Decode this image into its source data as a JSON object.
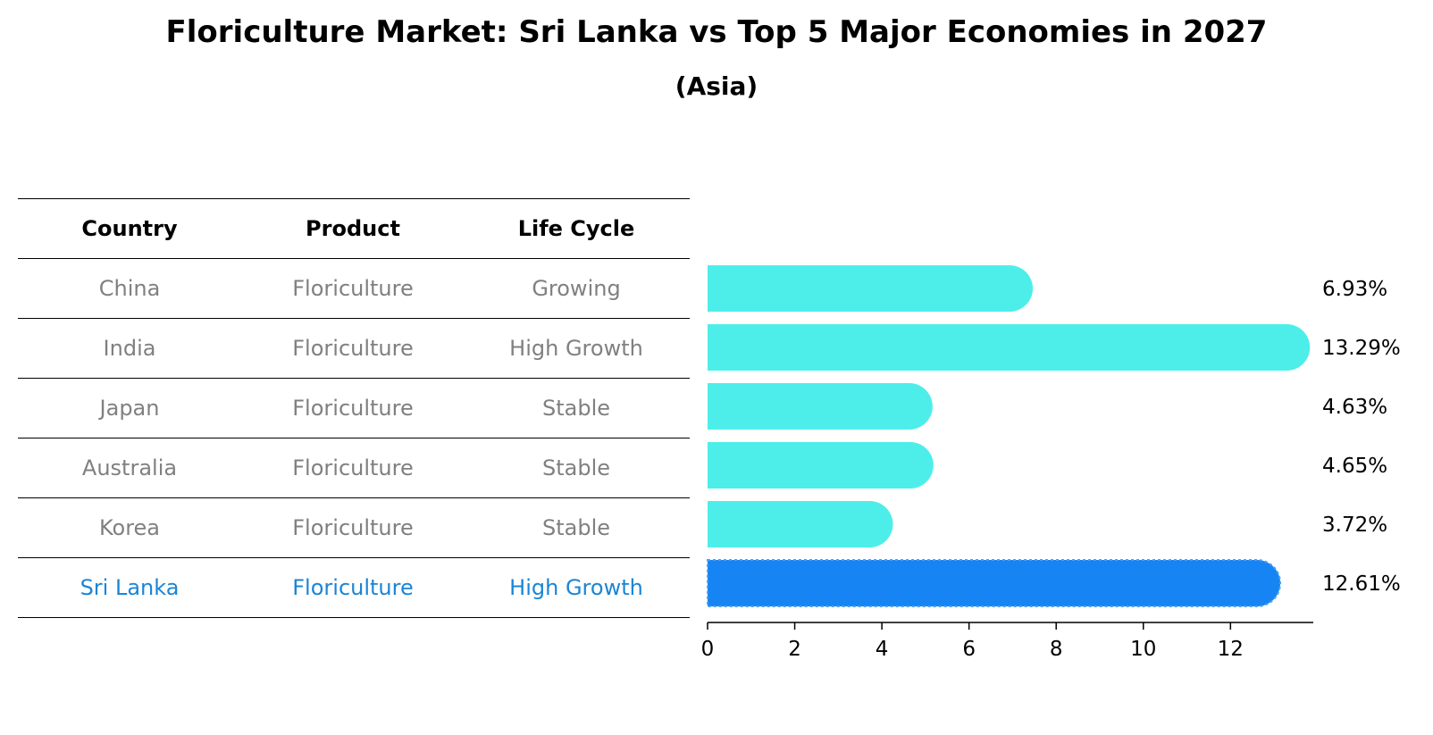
{
  "title": "Floriculture Market: Sri Lanka vs Top 5 Major Economies in 2027",
  "subtitle": "(Asia)",
  "table": {
    "headers": [
      "Country",
      "Product",
      "Life Cycle"
    ],
    "rows": [
      {
        "country": "China",
        "product": "Floriculture",
        "life_cycle": "Growing"
      },
      {
        "country": "India",
        "product": "Floriculture",
        "life_cycle": "High Growth"
      },
      {
        "country": "Japan",
        "product": "Floriculture",
        "life_cycle": "Stable"
      },
      {
        "country": "Australia",
        "product": "Floriculture",
        "life_cycle": "Stable"
      },
      {
        "country": "Korea",
        "product": "Floriculture",
        "life_cycle": "Stable"
      },
      {
        "country": "Sri Lanka",
        "product": "Floriculture",
        "life_cycle": "High Growth"
      }
    ]
  },
  "chart_data": {
    "type": "bar",
    "orientation": "horizontal",
    "categories": [
      "China",
      "India",
      "Japan",
      "Australia",
      "Korea",
      "Sri Lanka"
    ],
    "values": [
      6.93,
      13.29,
      4.63,
      4.65,
      3.72,
      12.61
    ],
    "value_labels": [
      "6.93%",
      "13.29%",
      "4.63%",
      "4.65%",
      "3.72%",
      "12.61%"
    ],
    "xlim": [
      0,
      13.9
    ],
    "xticks": [
      0,
      2,
      4,
      6,
      8,
      10,
      12
    ],
    "highlight_index": 5,
    "colors": {
      "default": "#4deeea",
      "highlight": "#1685f3"
    },
    "grid": false
  }
}
